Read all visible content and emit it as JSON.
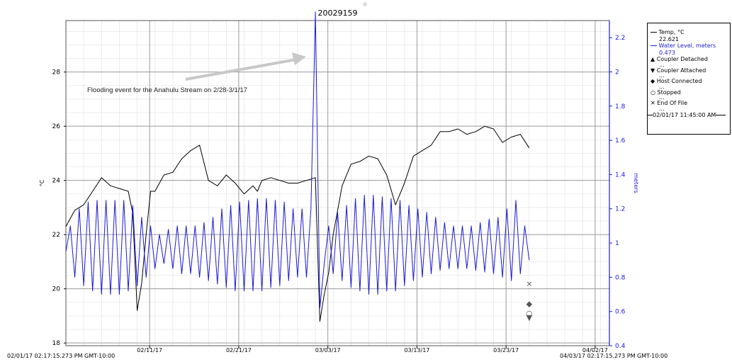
{
  "chart_data": {
    "type": "line",
    "title": "20029159",
    "xlabel": "",
    "ylabel_left": "°C",
    "ylabel_right": "meters",
    "x_start_label": "02/01/17 02:17:15.273 PM GMT-10:00",
    "x_end_label": "04/03/17 02:17:15.273 PM GMT-10:00",
    "x_range": [
      "2017-02-01 14:17",
      "2017-04-03 14:17"
    ],
    "x_ticks": [
      "02/11/17",
      "02/21/17",
      "03/03/17",
      "03/13/17",
      "03/23/17",
      "04/02/17"
    ],
    "ylim_left": [
      17.9,
      29.9
    ],
    "yticks_left": [
      "18",
      "20",
      "22",
      "24",
      "26",
      "28"
    ],
    "ylim_right": [
      0.4,
      2.3
    ],
    "yticks_right": [
      "0.4",
      "0.6",
      "0.8",
      "1",
      "1.2",
      "1.4",
      "1.6",
      "1.8",
      "2",
      "2.2"
    ],
    "grid": true,
    "annotation": "Flooding event for the Anahulu Stream on 2/28-3/1/17",
    "series": [
      {
        "name": "Temp, °C",
        "axis": "left",
        "color": "#000000",
        "x_days": [
          0,
          1,
          2,
          3,
          4,
          5,
          6,
          7,
          7.5,
          8,
          8.5,
          9,
          9.5,
          10,
          11,
          12,
          13,
          14,
          15,
          16,
          17,
          18,
          19,
          20,
          21,
          21.5,
          22,
          23,
          24,
          25,
          26,
          27,
          28,
          28.5,
          29,
          29.5,
          30,
          31,
          32,
          33,
          34,
          35,
          36,
          37,
          38,
          39,
          40,
          41,
          42,
          43,
          44,
          45,
          46,
          47,
          48,
          49,
          50,
          51,
          52
        ],
        "values": [
          22.3,
          22.9,
          23.1,
          23.6,
          24.1,
          23.8,
          23.7,
          23.6,
          22.8,
          19.2,
          20.2,
          22.0,
          23.6,
          23.6,
          24.2,
          24.3,
          24.8,
          25.1,
          25.3,
          24.0,
          23.8,
          24.2,
          23.9,
          23.5,
          23.8,
          23.6,
          24.0,
          24.1,
          24.0,
          23.9,
          23.9,
          24.0,
          24.1,
          18.8,
          19.8,
          20.6,
          22.0,
          23.8,
          24.6,
          24.7,
          24.9,
          24.8,
          24.2,
          23.1,
          23.9,
          24.9,
          25.1,
          25.3,
          25.8,
          25.8,
          25.9,
          25.7,
          25.8,
          26.0,
          25.9,
          25.4,
          25.6,
          25.7,
          25.2
        ]
      },
      {
        "name": "Water Level, meters",
        "axis": "right",
        "color": "#1a1ad8",
        "x_days": [
          0,
          0.5,
          1,
          1.5,
          2,
          2.5,
          3,
          3.5,
          4,
          4.5,
          5,
          5.5,
          6,
          6.5,
          7,
          7.5,
          8,
          8.5,
          9,
          9.5,
          10,
          10.5,
          11,
          11.5,
          12,
          12.5,
          13,
          13.5,
          14,
          14.5,
          15,
          15.5,
          16,
          16.5,
          17,
          17.5,
          18,
          18.5,
          19,
          19.5,
          20,
          20.5,
          21,
          21.5,
          22,
          22.5,
          23,
          23.5,
          24,
          24.5,
          25,
          25.5,
          26,
          26.5,
          27,
          27.5,
          28,
          28.5,
          29,
          29.5,
          30,
          30.5,
          31,
          31.5,
          32,
          32.5,
          33,
          33.5,
          34,
          34.5,
          35,
          35.5,
          36,
          36.5,
          37,
          37.5,
          38,
          38.5,
          39,
          39.5,
          40,
          40.5,
          41,
          41.5,
          42,
          42.5,
          43,
          43.5,
          44,
          44.5,
          45,
          45.5,
          46,
          46.5,
          47,
          47.5,
          48,
          48.5,
          49,
          49.5,
          50,
          50.5,
          51,
          51.5,
          52
        ],
        "values": [
          0.95,
          1.1,
          0.8,
          1.2,
          0.75,
          1.24,
          0.72,
          1.25,
          0.7,
          1.25,
          0.7,
          1.25,
          0.7,
          1.25,
          0.72,
          1.22,
          0.75,
          1.15,
          0.8,
          1.1,
          0.85,
          1.05,
          0.88,
          1.08,
          0.85,
          1.1,
          0.82,
          1.1,
          0.82,
          1.1,
          0.8,
          1.12,
          0.78,
          1.15,
          0.76,
          1.2,
          0.74,
          1.22,
          0.72,
          1.24,
          0.72,
          1.25,
          0.72,
          1.26,
          0.72,
          1.26,
          0.74,
          1.25,
          0.75,
          1.24,
          0.78,
          1.2,
          0.8,
          1.2,
          0.8,
          1.2,
          2.35,
          0.62,
          0.88,
          1.1,
          0.82,
          1.18,
          0.78,
          1.22,
          0.74,
          1.26,
          0.72,
          1.28,
          0.7,
          1.28,
          0.7,
          1.27,
          0.72,
          1.26,
          0.72,
          1.25,
          0.75,
          1.22,
          0.78,
          1.2,
          0.8,
          1.18,
          0.82,
          1.15,
          0.84,
          1.12,
          0.85,
          1.1,
          0.85,
          1.1,
          0.85,
          1.1,
          0.84,
          1.12,
          0.83,
          1.14,
          0.82,
          1.15,
          0.8,
          1.2,
          0.78,
          1.25,
          0.82,
          1.1,
          0.9
        ]
      }
    ],
    "event_markers": [
      {
        "name": "End Of File",
        "symbol": "×",
        "x_days": 52,
        "value": 20.2,
        "axis": "left"
      },
      {
        "name": "Host Connected",
        "symbol": "◆",
        "x_days": 52,
        "value": 19.45,
        "axis": "left"
      },
      {
        "name": "Stopped",
        "symbol": "○",
        "x_days": 52,
        "value": 19.1,
        "axis": "left"
      },
      {
        "name": "Coupler Attached",
        "symbol": "▼",
        "x_days": 52,
        "value": 18.95,
        "axis": "left"
      }
    ]
  },
  "legend": {
    "temp_label": "Temp, °C",
    "temp_value": "22.621",
    "water_label": "Water Level, meters",
    "water_value": "0.473",
    "coupler_detached": "Coupler Detached",
    "coupler_attached": "Coupler Attached",
    "host_connected": "Host Connected",
    "stopped": "Stopped",
    "end_of_file": "End Of File",
    "ellipsis": "...",
    "cursor_time": "02/01/17 11:45:00 AM",
    "sym_up": "▲",
    "sym_down": "▼",
    "sym_diamond": "◆",
    "sym_circle": "○",
    "sym_x": "✕"
  }
}
